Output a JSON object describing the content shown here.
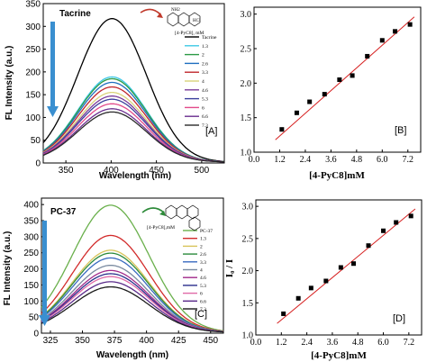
{
  "figure": {
    "molecule_caption": "[4-PyC8], mM",
    "molecule_letters": "HCl",
    "molecule_letters_bottom": "NH2"
  },
  "chart_data": [
    {
      "id": "A",
      "type": "line",
      "panel_label": "[A]",
      "compound_label": "Tacrine",
      "xlabel": "Wavelength (nm)",
      "ylabel": "FL Intensity (a.u.)",
      "xlim": [
        325,
        525
      ],
      "ylim": [
        0,
        350
      ],
      "xticks": [
        350,
        400,
        450,
        500
      ],
      "yticks": [
        0,
        50,
        100,
        150,
        200,
        250,
        300,
        350
      ],
      "peak_x": 401,
      "width": 38,
      "legend_title": "[4-PyC8], mM",
      "series": [
        {
          "name": "Tacrine",
          "peak": 315,
          "color": "#000000"
        },
        {
          "name": "1.3",
          "peak": 187,
          "color": "#3ec8e6"
        },
        {
          "name": "2",
          "peak": 183,
          "color": "#2c9a45"
        },
        {
          "name": "2.6",
          "peak": 175,
          "color": "#1f6fbf"
        },
        {
          "name": "3.3",
          "peak": 165,
          "color": "#c0272d"
        },
        {
          "name": "4",
          "peak": 153,
          "color": "#d9d37a"
        },
        {
          "name": "4.6",
          "peak": 145,
          "color": "#7b3c9a"
        },
        {
          "name": "5.3",
          "peak": 138,
          "color": "#3b3f9c"
        },
        {
          "name": "6",
          "peak": 128,
          "color": "#e34a8a"
        },
        {
          "name": "6.6",
          "peak": 117,
          "color": "#6a2e8f"
        },
        {
          "name": "7.3",
          "peak": 110,
          "color": "#2a2a2a"
        }
      ]
    },
    {
      "id": "B",
      "type": "scatter",
      "panel_label": "[B]",
      "xlabel": "[4-PyC8]mM",
      "ylabel": "",
      "xlim": [
        0,
        7.8
      ],
      "ylim": [
        1.0,
        3.1
      ],
      "xticks": [
        "0.0",
        "1.2",
        "2.4",
        "3.6",
        "4.8",
        "6.0",
        "7.2"
      ],
      "yticks": [
        "1.0",
        "1.5",
        "2.0",
        "2.5",
        "3.0"
      ],
      "points": [
        [
          1.3,
          1.33
        ],
        [
          2.0,
          1.57
        ],
        [
          2.6,
          1.73
        ],
        [
          3.3,
          1.84
        ],
        [
          4.0,
          2.05
        ],
        [
          4.6,
          2.11
        ],
        [
          5.3,
          2.39
        ],
        [
          6.0,
          2.62
        ],
        [
          6.6,
          2.75
        ],
        [
          7.3,
          2.85
        ]
      ],
      "fit": [
        [
          1.0,
          1.18
        ],
        [
          7.5,
          2.96
        ]
      ],
      "point_color": "#000000",
      "fit_color": "#d62020"
    },
    {
      "id": "C",
      "type": "line",
      "panel_label": "[C]",
      "compound_label": "PC-37",
      "xlabel": "Wavelength (nm)",
      "ylabel": "FL Intensity (a.u.)",
      "xlim": [
        318,
        460
      ],
      "ylim": [
        0,
        420
      ],
      "xticks": [
        325,
        350,
        375,
        400,
        425,
        450
      ],
      "yticks": [
        0,
        50,
        100,
        150,
        200,
        250,
        300,
        350,
        400
      ],
      "peak_x": 372,
      "width": 30,
      "legend_title": "[4-PyC8],mM",
      "series": [
        {
          "name": "PC-37",
          "peak": 396,
          "color": "#6ab04c"
        },
        {
          "name": "1.3",
          "peak": 302,
          "color": "#d22b2b"
        },
        {
          "name": "2",
          "peak": 256,
          "color": "#d8c45a"
        },
        {
          "name": "2.6",
          "peak": 247,
          "color": "#2c8a3c"
        },
        {
          "name": "3.3",
          "peak": 232,
          "color": "#3a6bc0"
        },
        {
          "name": "4",
          "peak": 209,
          "color": "#7a8aa0"
        },
        {
          "name": "4.6",
          "peak": 193,
          "color": "#a02a8a"
        },
        {
          "name": "5.3",
          "peak": 183,
          "color": "#2b2f8c"
        },
        {
          "name": "6",
          "peak": 174,
          "color": "#e06aa8"
        },
        {
          "name": "6.6",
          "peak": 158,
          "color": "#5a2a8a"
        },
        {
          "name": "7.3",
          "peak": 142,
          "color": "#1a1a1a"
        }
      ]
    },
    {
      "id": "D",
      "type": "scatter",
      "panel_label": "[D]",
      "xlabel": "[4-PyC8]mM",
      "ylabel": "I₀ / I",
      "xlim": [
        0,
        7.8
      ],
      "ylim": [
        1.0,
        3.1
      ],
      "xticks": [
        "0.0",
        "1.2",
        "2.4",
        "3.6",
        "4.8",
        "6.0",
        "7.2"
      ],
      "yticks": [
        "1.0",
        "1.5",
        "2.0",
        "2.5",
        "3.0"
      ],
      "points": [
        [
          1.3,
          1.33
        ],
        [
          2.0,
          1.57
        ],
        [
          2.6,
          1.73
        ],
        [
          3.3,
          1.84
        ],
        [
          4.0,
          2.05
        ],
        [
          4.6,
          2.11
        ],
        [
          5.3,
          2.39
        ],
        [
          6.0,
          2.62
        ],
        [
          6.6,
          2.75
        ],
        [
          7.3,
          2.85
        ]
      ],
      "fit": [
        [
          1.0,
          1.18
        ],
        [
          7.5,
          2.96
        ]
      ],
      "point_color": "#000000",
      "fit_color": "#d62020"
    }
  ]
}
